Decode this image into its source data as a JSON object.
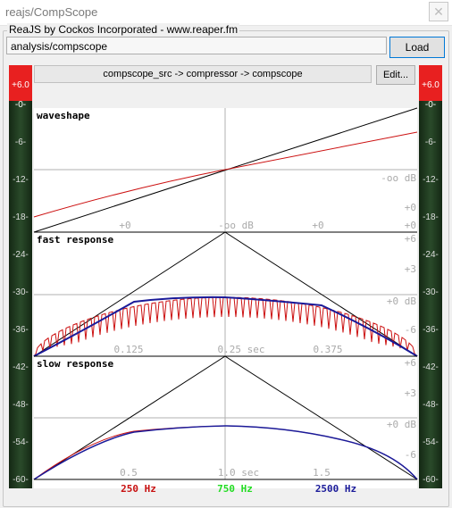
{
  "window": {
    "title": "reajs/CompScope",
    "close_glyph": "✕"
  },
  "group": {
    "label": "ReaJS by Cockos Incorporated - www.reaper.fm"
  },
  "path_field": {
    "value": "analysis/compscope"
  },
  "buttons": {
    "load": "Load",
    "edit": "Edit..."
  },
  "routing": {
    "text": "compscope_src -> compressor -> compscope"
  },
  "meters": {
    "peak_label": "+6.0",
    "ticks": [
      "-0-",
      "-6-",
      "-12-",
      "-18-",
      "-24-",
      "-30-",
      "-36-",
      "-42-",
      "-48-",
      "-54-",
      "-60-"
    ]
  },
  "panels": {
    "waveshape": {
      "title": "waveshape",
      "axis_labels": [
        "+0",
        "-oo dB",
        "+0"
      ],
      "right_labels": [
        "-oo dB",
        "+0",
        "+0"
      ]
    },
    "fast": {
      "title": "fast response",
      "axis_labels": [
        "0.125",
        "0.25 sec",
        "0.375"
      ],
      "right_labels": [
        "+6",
        "+3",
        "+0 dB",
        "-6"
      ]
    },
    "slow": {
      "title": "slow response",
      "axis_labels": [
        "0.5",
        "1.0 sec",
        "1.5"
      ],
      "right_labels": [
        "+6",
        "+3",
        "+0 dB",
        "-6"
      ]
    }
  },
  "legend": [
    {
      "label": "250 Hz",
      "color": "#c81010"
    },
    {
      "label": "750 Hz",
      "color": "#22dd22"
    },
    {
      "label": "2500 Hz",
      "color": "#1a1a99"
    }
  ],
  "colors": {
    "meter_red": "#e82020",
    "meter_green": "#1f3d1f",
    "curve_red": "#cc1111",
    "curve_blue": "#1a1a99",
    "grid": "#b0b0b0"
  }
}
